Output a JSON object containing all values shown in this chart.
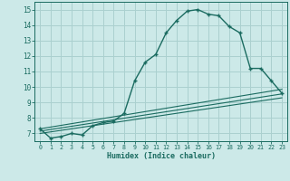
{
  "xlabel": "Humidex (Indice chaleur)",
  "ylabel": "",
  "background_color": "#cce9e8",
  "grid_color": "#aad0cf",
  "line_color": "#1a6b60",
  "xlim": [
    -0.5,
    23.5
  ],
  "ylim": [
    6.5,
    15.5
  ],
  "xticks": [
    0,
    1,
    2,
    3,
    4,
    5,
    6,
    7,
    8,
    9,
    10,
    11,
    12,
    13,
    14,
    15,
    16,
    17,
    18,
    19,
    20,
    21,
    22,
    23
  ],
  "yticks": [
    7,
    8,
    9,
    10,
    11,
    12,
    13,
    14,
    15
  ],
  "series1_x": [
    0,
    1,
    2,
    3,
    4,
    5,
    6,
    7,
    8,
    9,
    10,
    11,
    12,
    13,
    14,
    15,
    16,
    17,
    18,
    19,
    20,
    21,
    22,
    23
  ],
  "series1_y": [
    7.3,
    6.7,
    6.8,
    7.0,
    6.9,
    7.5,
    7.7,
    7.8,
    8.3,
    10.4,
    11.6,
    12.1,
    13.5,
    14.3,
    14.9,
    15.0,
    14.7,
    14.6,
    13.9,
    13.5,
    11.2,
    11.2,
    10.4,
    9.6
  ],
  "series2_x": [
    0,
    23
  ],
  "series2_y": [
    7.0,
    9.3
  ],
  "series3_x": [
    0,
    23
  ],
  "series3_y": [
    7.15,
    9.55
  ],
  "series4_x": [
    0,
    23
  ],
  "series4_y": [
    7.3,
    9.85
  ]
}
